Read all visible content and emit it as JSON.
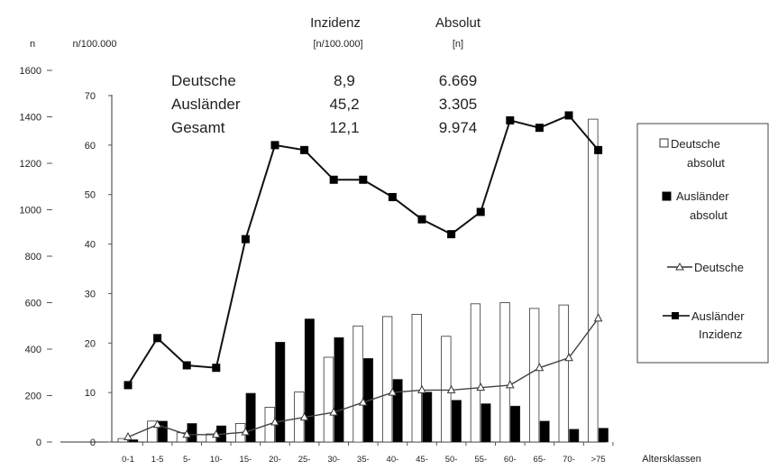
{
  "chart_data": {
    "type": "bar",
    "left_axis_label": "n",
    "right_axis_label": "n/100.000",
    "xlabel": "Altersklassen",
    "left_ylim": [
      0,
      1600
    ],
    "right_ylim": [
      0,
      70
    ],
    "left_ticks": [
      "0",
      "200",
      "400",
      "600",
      "800",
      "1000",
      "1200",
      "1400",
      "1600"
    ],
    "right_ticks": [
      "0",
      "10",
      "20",
      "30",
      "40",
      "50",
      "60",
      "70"
    ],
    "categories": [
      "0-1",
      "1-5",
      "5-",
      "10-",
      "15-",
      "20-",
      "25-",
      "30-",
      "35-",
      "40-",
      "45-",
      "50-",
      "55-",
      "60-",
      "65-",
      "70-",
      ">75"
    ],
    "series": [
      {
        "name": "Deutsche absolut",
        "kind": "bar",
        "axis": "left",
        "fill": "#ffffff",
        "values": [
          15,
          90,
          40,
          35,
          80,
          150,
          215,
          365,
          500,
          540,
          550,
          455,
          595,
          600,
          575,
          590,
          1390
        ]
      },
      {
        "name": "Ausländer absolut",
        "kind": "bar",
        "axis": "left",
        "fill": "#000000",
        "values": [
          10,
          90,
          80,
          70,
          210,
          430,
          530,
          450,
          360,
          270,
          215,
          180,
          165,
          155,
          90,
          55,
          60
        ]
      },
      {
        "name": "Deutsche",
        "kind": "line",
        "axis": "right",
        "marker": "triangle",
        "values": [
          1,
          3.5,
          1.5,
          1.5,
          2,
          4,
          5,
          6,
          8,
          10,
          10.5,
          10.5,
          11,
          11.5,
          15,
          17,
          25
        ]
      },
      {
        "name": "Ausländer Inzidenz",
        "kind": "line",
        "axis": "right",
        "marker": "square",
        "values": [
          11.5,
          21,
          15.5,
          15,
          41,
          60,
          59,
          53,
          53,
          49.5,
          45,
          42,
          46.5,
          65,
          63.5,
          66,
          59
        ]
      }
    ],
    "stats_table": {
      "headers": [
        "Inzidenz",
        "Absolut"
      ],
      "subheaders": [
        "[n/100.000]",
        "[n]"
      ],
      "rows": [
        {
          "label": "Deutsche",
          "inzidenz": "8,9",
          "absolut": "6.669"
        },
        {
          "label": "Ausländer",
          "inzidenz": "45,2",
          "absolut": "3.305"
        },
        {
          "label": "Gesamt",
          "inzidenz": "12,1",
          "absolut": "9.974"
        }
      ]
    },
    "legend": {
      "placement": "right",
      "items": [
        {
          "label_line1": "Deutsche",
          "label_line2": "absolut",
          "symbol": "white-square"
        },
        {
          "label_line1": "Ausländer",
          "label_line2": "absolut",
          "symbol": "black-square"
        },
        {
          "label_line1": "Deutsche",
          "label_line2": "",
          "symbol": "triangle-line"
        },
        {
          "label_line1": "Ausländer",
          "label_line2": "Inzidenz",
          "symbol": "square-line"
        }
      ]
    }
  }
}
